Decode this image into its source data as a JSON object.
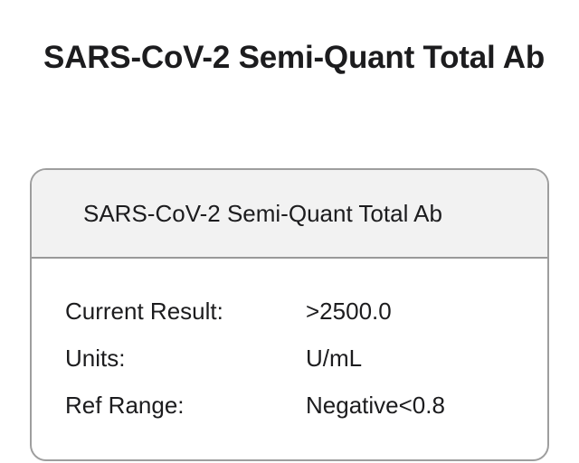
{
  "page": {
    "title": "SARS-CoV-2 Semi-Quant Total Ab"
  },
  "card": {
    "header_title": "SARS-CoV-2 Semi-Quant Total Ab",
    "rows": [
      {
        "label": "Current Result:",
        "value": ">2500.0"
      },
      {
        "label": "Units:",
        "value": "U/mL"
      },
      {
        "label": "Ref Range:",
        "value": "Negative<0.8"
      }
    ]
  }
}
